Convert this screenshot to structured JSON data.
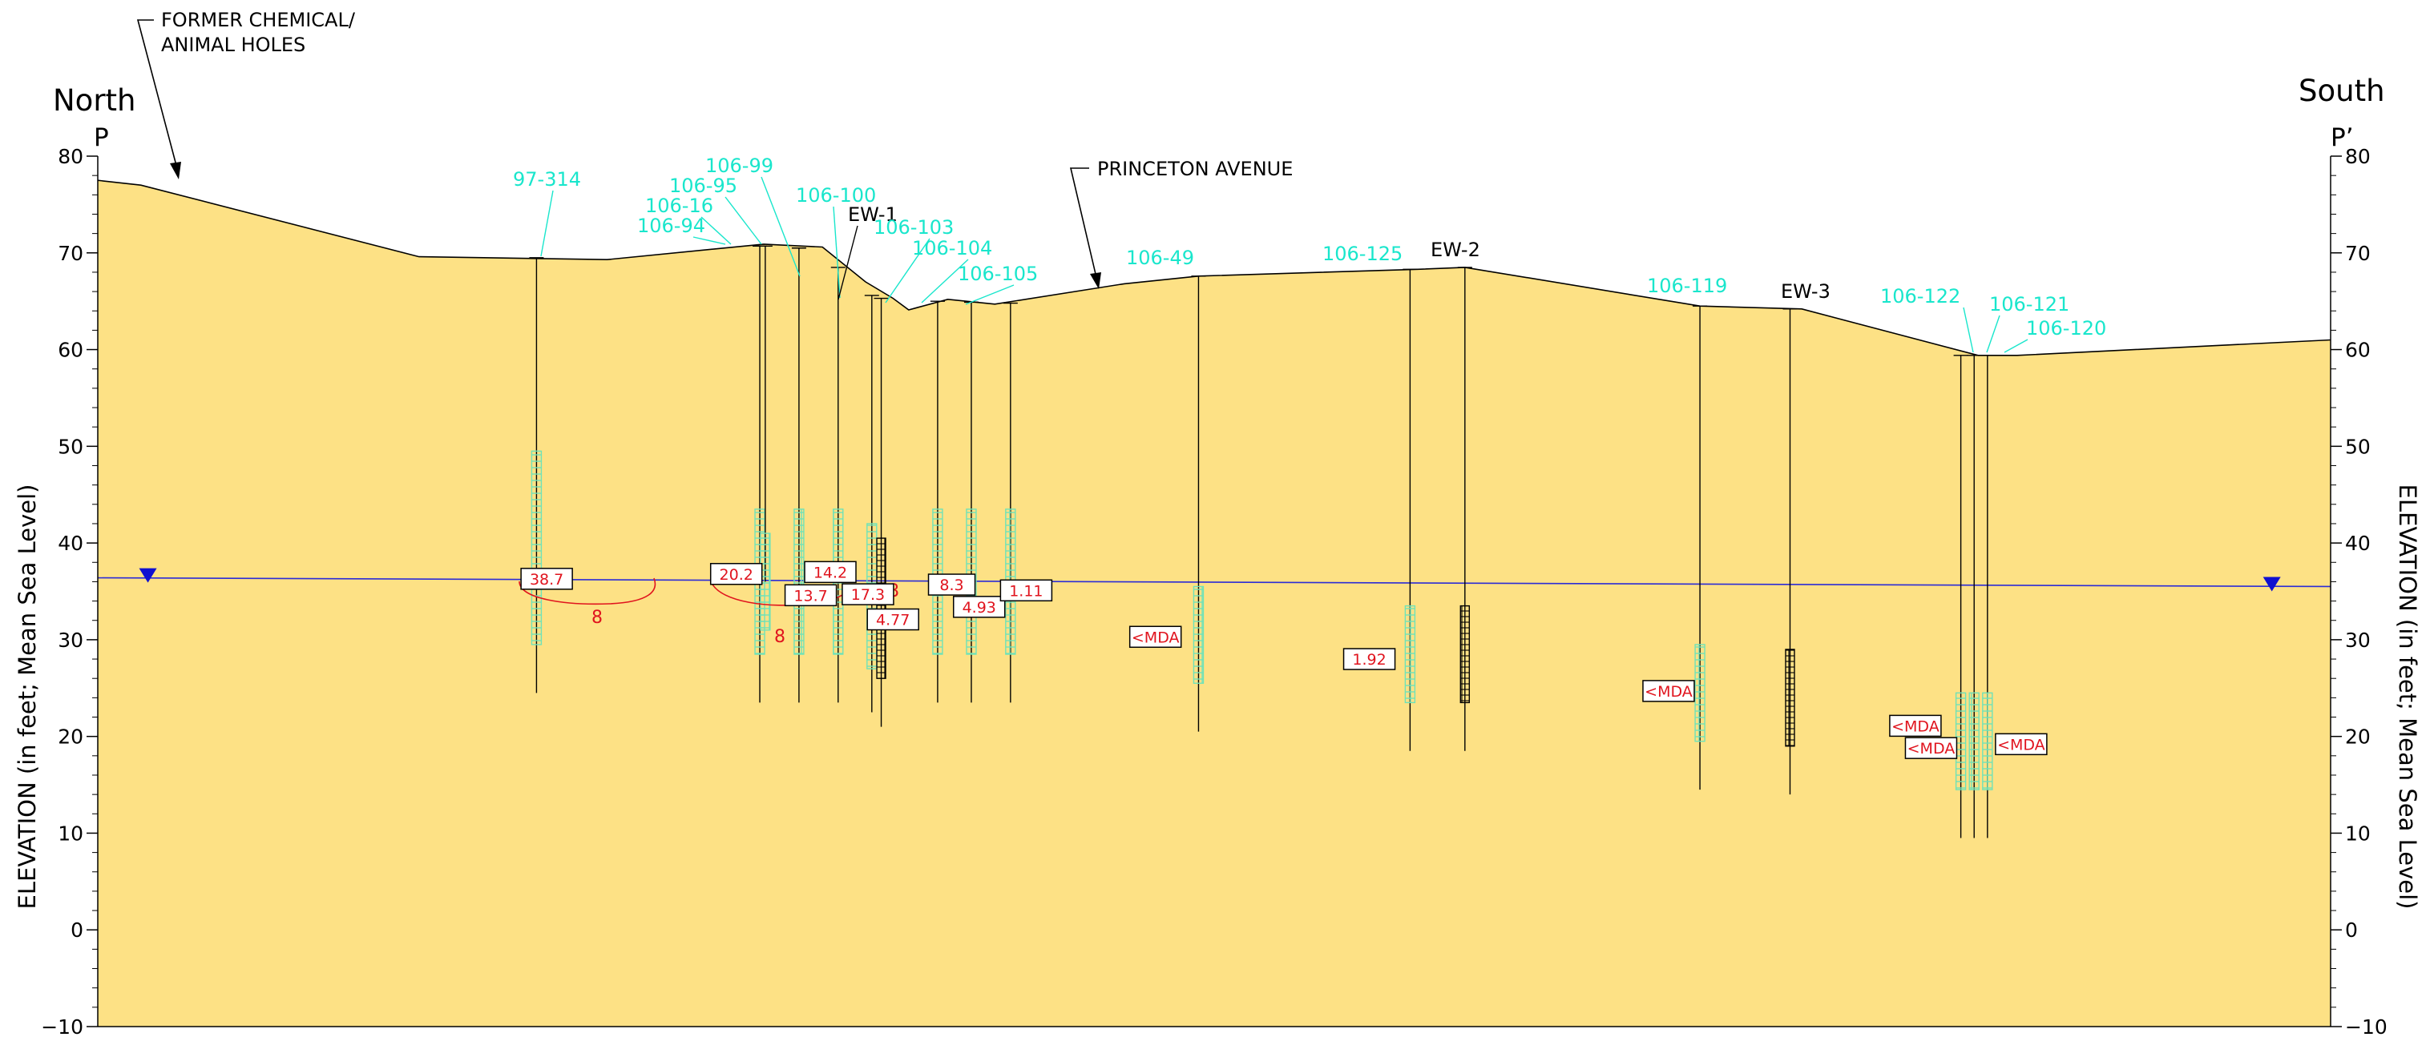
{
  "labels": {
    "north": "North",
    "south": "South",
    "section_left": "P",
    "section_right": "P’",
    "y_axis_title": "ELEVATION (in feet; Mean Sea Level)",
    "former_holes_line1": "FORMER CHEMICAL/",
    "former_holes_line2": "ANIMAL HOLES",
    "princeton": "PRINCETON AVENUE"
  },
  "colors": {
    "ground_fill": "#fde185",
    "ground_line": "#000000",
    "well_label": "#19e6cc",
    "screen": "#6fe2b8",
    "ew_screen": "#000000",
    "water_table": "#2b2bd6",
    "water_marker": "#1010d0",
    "value_text": "#e0141e",
    "contour": "#e0141e"
  },
  "y_axis": {
    "min": -10,
    "max": 80,
    "ticks": [
      "80",
      "70",
      "60",
      "50",
      "40",
      "30",
      "20",
      "10",
      "0",
      "−10"
    ]
  },
  "cross_section": {
    "surface_profile": [
      {
        "station": 0,
        "elevation": 77.5
      },
      {
        "station": 55,
        "elevation": 77.0
      },
      {
        "station": 410,
        "elevation": 69.6
      },
      {
        "station": 650,
        "elevation": 69.3
      },
      {
        "station": 850,
        "elevation": 70.9
      },
      {
        "station": 925,
        "elevation": 70.6
      },
      {
        "station": 980,
        "elevation": 67.0
      },
      {
        "station": 1015,
        "elevation": 65.3
      },
      {
        "station": 1035,
        "elevation": 64.1
      },
      {
        "station": 1085,
        "elevation": 65.2
      },
      {
        "station": 1145,
        "elevation": 64.7
      },
      {
        "station": 1310,
        "elevation": 66.8
      },
      {
        "station": 1405,
        "elevation": 67.6
      },
      {
        "station": 1685,
        "elevation": 68.3
      },
      {
        "station": 1745,
        "elevation": 68.5
      },
      {
        "station": 2045,
        "elevation": 64.5
      },
      {
        "station": 2175,
        "elevation": 64.2
      },
      {
        "station": 2400,
        "elevation": 59.4
      },
      {
        "station": 2450,
        "elevation": 59.4
      },
      {
        "station": 2850,
        "elevation": 61.0
      }
    ],
    "water_table": [
      {
        "station": 0,
        "elevation": 36.4
      },
      {
        "station": 2850,
        "elevation": 35.5
      }
    ],
    "water_markers": [
      {
        "station": 64,
        "elevation": 36.4
      },
      {
        "station": 2775,
        "elevation": 35.5
      }
    ],
    "wells": [
      {
        "id": "97-314",
        "station": 560,
        "top": 69.5,
        "bottom": 24.5,
        "screen_top": 49.5,
        "screen_bottom": 29.5,
        "ew": false
      },
      {
        "id": "106-94",
        "station": 845,
        "top": 70.7,
        "bottom": 23.5,
        "screen_top": 43.5,
        "screen_bottom": 28.5,
        "ew": false
      },
      {
        "id": "106-16",
        "station": 852,
        "top": 70.7,
        "bottom": 36.0,
        "screen_top": 41.0,
        "screen_bottom": 31.0,
        "ew": false
      },
      {
        "id": "106-95",
        "station": 895,
        "top": 70.5,
        "bottom": 23.5,
        "screen_top": 43.5,
        "screen_bottom": 28.5,
        "ew": false
      },
      {
        "id": "106-99",
        "station": 945,
        "top": 68.5,
        "bottom": 23.5,
        "screen_top": 43.5,
        "screen_bottom": 28.5,
        "ew": false
      },
      {
        "id": "106-100",
        "station": 988,
        "top": 65.6,
        "bottom": 22.5,
        "screen_top": 42.0,
        "screen_bottom": 27.0,
        "ew": false
      },
      {
        "id": "EW-1",
        "station": 1000,
        "top": 65.3,
        "bottom": 21.0,
        "screen_top": 40.5,
        "screen_bottom": 26.0,
        "ew": true
      },
      {
        "id": "106-103",
        "station": 1072,
        "top": 65.0,
        "bottom": 23.5,
        "screen_top": 43.5,
        "screen_bottom": 28.5,
        "ew": false
      },
      {
        "id": "106-104",
        "station": 1115,
        "top": 64.9,
        "bottom": 23.5,
        "screen_top": 43.5,
        "screen_bottom": 28.5,
        "ew": false
      },
      {
        "id": "106-105",
        "station": 1165,
        "top": 64.8,
        "bottom": 23.5,
        "screen_top": 43.5,
        "screen_bottom": 28.5,
        "ew": false
      },
      {
        "id": "106-49",
        "station": 1405,
        "top": 67.6,
        "bottom": 20.5,
        "screen_top": 35.5,
        "screen_bottom": 25.5,
        "ew": false
      },
      {
        "id": "106-125",
        "station": 1675,
        "top": 68.3,
        "bottom": 18.5,
        "screen_top": 33.5,
        "screen_bottom": 23.5,
        "ew": false
      },
      {
        "id": "EW-2",
        "station": 1745,
        "top": 68.5,
        "bottom": 18.5,
        "screen_top": 33.5,
        "screen_bottom": 23.5,
        "ew": true
      },
      {
        "id": "106-119",
        "station": 2045,
        "top": 64.5,
        "bottom": 14.5,
        "screen_top": 29.5,
        "screen_bottom": 19.5,
        "ew": false
      },
      {
        "id": "EW-3",
        "station": 2160,
        "top": 64.2,
        "bottom": 14.0,
        "screen_top": 29.0,
        "screen_bottom": 19.0,
        "ew": true
      },
      {
        "id": "106-122",
        "station": 2378,
        "top": 59.4,
        "bottom": 9.5,
        "screen_top": 24.5,
        "screen_bottom": 14.5,
        "ew": false
      },
      {
        "id": "106-121",
        "station": 2395,
        "top": 59.4,
        "bottom": 9.5,
        "screen_top": 24.5,
        "screen_bottom": 14.5,
        "ew": false
      },
      {
        "id": "106-120",
        "station": 2412,
        "top": 59.4,
        "bottom": 9.5,
        "screen_top": 24.5,
        "screen_bottom": 14.5,
        "ew": false
      }
    ],
    "results": [
      {
        "value": "38.7",
        "station": 573,
        "elevation": 36.3
      },
      {
        "value": "20.2",
        "station": 815,
        "elevation": 36.8
      },
      {
        "value": "14.2",
        "station": 935,
        "elevation": 37.0
      },
      {
        "value": "13.7",
        "station": 910,
        "elevation": 34.6
      },
      {
        "value": "17.3",
        "station": 983,
        "elevation": 34.7
      },
      {
        "value": "4.77",
        "station": 1015,
        "elevation": 32.1
      },
      {
        "value": "8.3",
        "station": 1090,
        "elevation": 35.7
      },
      {
        "value": "4.93",
        "station": 1125,
        "elevation": 33.4
      },
      {
        "value": "1.11",
        "station": 1185,
        "elevation": 35.1
      },
      {
        "value": "<MDA",
        "station": 1350,
        "elevation": 30.3
      },
      {
        "value": "1.92",
        "station": 1623,
        "elevation": 28.0
      },
      {
        "value": "<MDA",
        "station": 2005,
        "elevation": 24.7
      },
      {
        "value": "<MDA",
        "station": 2320,
        "elevation": 21.1
      },
      {
        "value": "<MDA",
        "station": 2340,
        "elevation": 18.8
      },
      {
        "value": "<MDA",
        "station": 2455,
        "elevation": 19.2
      }
    ],
    "contour_label": "8"
  }
}
